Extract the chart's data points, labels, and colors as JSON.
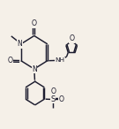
{
  "bg": "#f5f0e8",
  "bc": "#1c1c2e",
  "lw": 1.05,
  "fs": 5.6,
  "figsize": [
    1.35,
    1.46
  ],
  "dpi": 100,
  "xlim": [
    0.0,
    1.0
  ],
  "ylim": [
    0.0,
    1.0
  ]
}
